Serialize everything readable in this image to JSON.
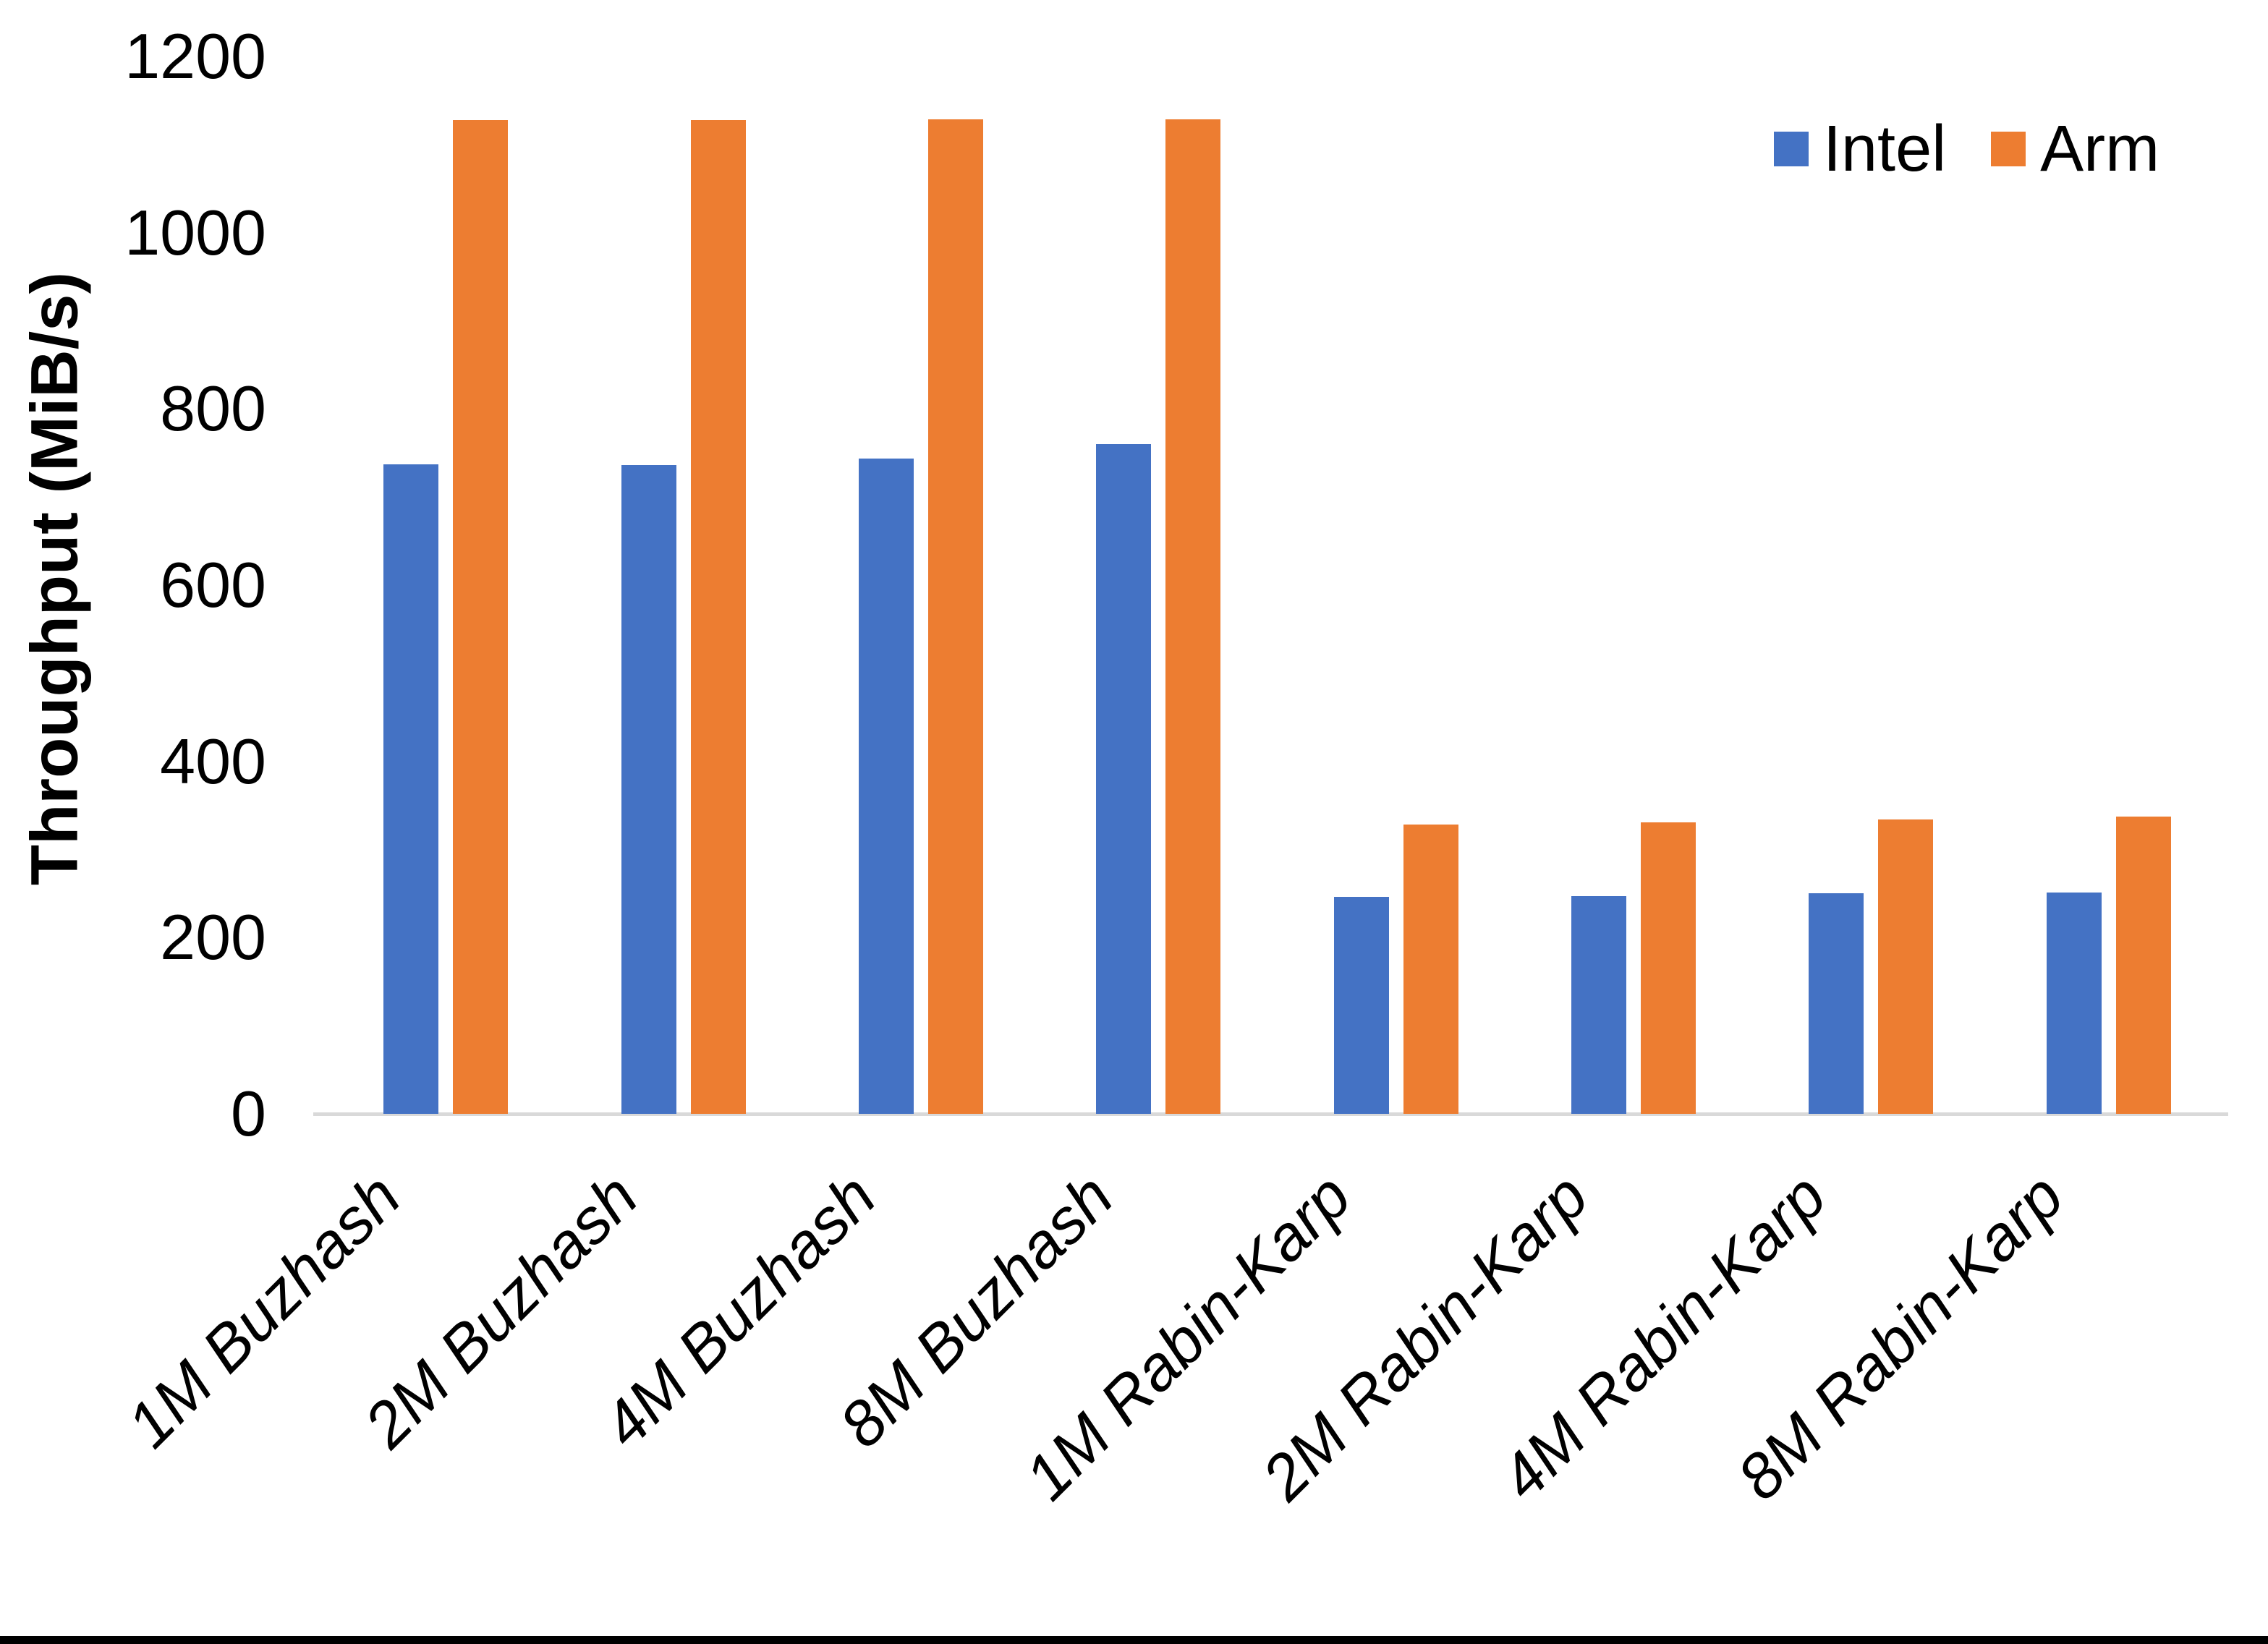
{
  "figure": {
    "background": "#FFFFFF",
    "bottom_border_color": "#000000"
  },
  "chart_data": {
    "type": "bar",
    "title": "",
    "xlabel": "",
    "ylabel": "Throughput (MiB/s)",
    "ylim": [
      0,
      1200
    ],
    "yticks": [
      0,
      200,
      400,
      600,
      800,
      1000,
      1200
    ],
    "grid": false,
    "axis_line_color": "#D9D9D9",
    "legend_position": "top-right",
    "categories": [
      "1M Buzhash",
      "2M Buzhash",
      "4M Buzhash",
      "8M Buzhash",
      "1M Rabin-Karp",
      "2M Rabin-Karp",
      "4M Rabin-Karp",
      "8M Rabin-Karp"
    ],
    "series": [
      {
        "name": "Intel",
        "color": "#4472C4",
        "values": [
          737,
          736,
          744,
          760,
          246,
          247,
          250,
          251
        ]
      },
      {
        "name": "Arm",
        "color": "#ED7D31",
        "values": [
          1128,
          1128,
          1129,
          1129,
          328,
          331,
          334,
          337
        ]
      }
    ]
  }
}
